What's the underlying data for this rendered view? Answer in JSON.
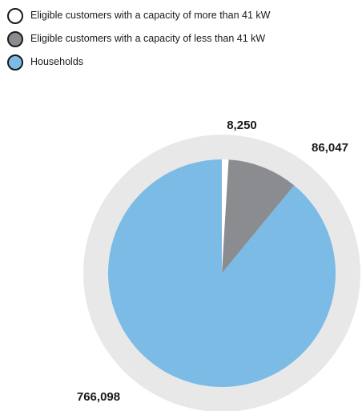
{
  "chart_data": {
    "type": "pie",
    "categories": [
      "Eligible customers with a capacity of more than 41 kW",
      "Eligible customers with a capacity of less than 41 kW",
      "Households"
    ],
    "values": [
      8250,
      86047,
      766098
    ],
    "value_labels": [
      "8,250",
      "86,047",
      "766,098"
    ],
    "colors": [
      "#ffffff",
      "#8a8c90",
      "#7bbbe5"
    ],
    "ring_color": "#e8e8e9",
    "legend_position": "top-left",
    "title": ""
  }
}
